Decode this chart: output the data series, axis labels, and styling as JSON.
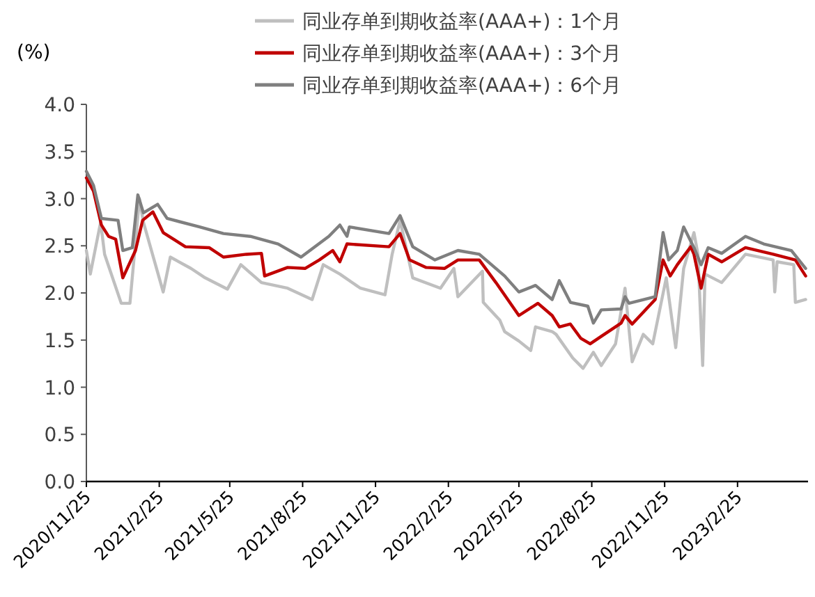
{
  "chart_data": {
    "type": "line",
    "ylabel": "(%)",
    "legend": "top",
    "grid": false,
    "marker": "none",
    "line_style": "solid",
    "xlim": [
      "2020-11-25",
      "2023-05-25"
    ],
    "xticks": [
      {
        "value": "2020-11-25",
        "label": "2020/11/25"
      },
      {
        "value": "2021-02-25",
        "label": "2021/2/25"
      },
      {
        "value": "2021-05-25",
        "label": "2021/5/25"
      },
      {
        "value": "2021-08-25",
        "label": "2021/8/25"
      },
      {
        "value": "2021-11-25",
        "label": "2021/11/25"
      },
      {
        "value": "2022-02-25",
        "label": "2022/2/25"
      },
      {
        "value": "2022-05-25",
        "label": "2022/5/25"
      },
      {
        "value": "2022-08-25",
        "label": "2022/8/25"
      },
      {
        "value": "2022-11-25",
        "label": "2022/11/25"
      },
      {
        "value": "2023-02-25",
        "label": "2023/2/25"
      }
    ],
    "ylim": [
      0,
      4
    ],
    "yticks": [
      {
        "value": 0,
        "label": "0.0"
      },
      {
        "value": 0.5,
        "label": "0.5"
      },
      {
        "value": 1,
        "label": "1.0"
      },
      {
        "value": 1.5,
        "label": "1.5"
      },
      {
        "value": 2,
        "label": "2.0"
      },
      {
        "value": 2.5,
        "label": "2.5"
      },
      {
        "value": 3,
        "label": "3.0"
      },
      {
        "value": 3.5,
        "label": "3.5"
      },
      {
        "value": 4,
        "label": "4.0"
      }
    ],
    "series": [
      {
        "name": "同业存单到期收益率(AAA+)：1个月",
        "color": "#bfbfbf",
        "x": [
          "2020-11-25",
          "2020-11-30",
          "2020-12-13",
          "2020-12-18",
          "2021-01-08",
          "2021-01-19",
          "2021-01-31",
          "2021-02-05",
          "2021-03-02",
          "2021-03-11",
          "2021-04-06",
          "2021-04-24",
          "2021-05-22",
          "2021-06-08",
          "2021-07-04",
          "2021-08-06",
          "2021-09-06",
          "2021-09-20",
          "2021-10-11",
          "2021-11-06",
          "2021-12-07",
          "2021-12-16",
          "2021-12-26",
          "2022-01-11",
          "2022-02-15",
          "2022-03-04",
          "2022-03-09",
          "2022-04-09",
          "2022-04-10",
          "2022-05-01",
          "2022-05-07",
          "2022-05-25",
          "2022-06-09",
          "2022-06-15",
          "2022-07-06",
          "2022-07-11",
          "2022-08-01",
          "2022-08-14",
          "2022-08-27",
          "2022-09-06",
          "2022-09-24",
          "2022-10-06",
          "2022-10-15",
          "2022-10-29",
          "2022-11-10",
          "2022-11-27",
          "2022-12-09",
          "2022-12-19",
          "2023-01-01",
          "2023-01-06",
          "2023-01-12",
          "2023-01-15",
          "2023-02-05",
          "2023-03-07",
          "2023-04-11",
          "2023-04-13",
          "2023-04-16",
          "2023-05-07",
          "2023-05-09",
          "2023-05-22"
        ],
        "values": [
          2.45,
          2.2,
          2.75,
          2.41,
          1.89,
          1.89,
          3.0,
          2.75,
          2.01,
          2.38,
          2.26,
          2.16,
          2.04,
          2.3,
          2.11,
          2.05,
          1.93,
          2.3,
          2.2,
          2.05,
          1.98,
          2.41,
          2.77,
          2.16,
          2.05,
          2.26,
          1.96,
          2.23,
          1.9,
          1.71,
          1.59,
          1.49,
          1.39,
          1.64,
          1.59,
          1.56,
          1.31,
          1.2,
          1.37,
          1.23,
          1.46,
          2.05,
          1.27,
          1.56,
          1.46,
          2.16,
          1.42,
          2.26,
          2.64,
          2.41,
          1.23,
          2.2,
          2.11,
          2.41,
          2.35,
          2.01,
          2.33,
          2.3,
          1.9,
          1.93
        ]
      },
      {
        "name": "同业存单到期收益率(AAA+)：3个月",
        "color": "#c00000",
        "x": [
          "2020-11-25",
          "2020-12-04",
          "2020-12-14",
          "2020-12-23",
          "2021-01-01",
          "2021-01-10",
          "2021-01-26",
          "2021-02-04",
          "2021-02-17",
          "2021-03-02",
          "2021-03-30",
          "2021-04-29",
          "2021-05-17",
          "2021-06-15",
          "2021-07-04",
          "2021-07-08",
          "2021-08-06",
          "2021-08-28",
          "2021-09-15",
          "2021-10-02",
          "2021-10-11",
          "2021-10-20",
          "2021-12-12",
          "2021-12-26",
          "2022-01-07",
          "2022-01-28",
          "2022-02-20",
          "2022-03-09",
          "2022-04-05",
          "2022-04-26",
          "2022-05-25",
          "2022-06-18",
          "2022-07-06",
          "2022-07-15",
          "2022-07-29",
          "2022-08-11",
          "2022-08-23",
          "2022-09-06",
          "2022-10-01",
          "2022-10-06",
          "2022-10-15",
          "2022-11-13",
          "2022-11-23",
          "2022-12-02",
          "2022-12-11",
          "2022-12-28",
          "2023-01-01",
          "2023-01-10",
          "2023-01-19",
          "2023-02-05",
          "2023-03-07",
          "2023-04-11",
          "2023-05-09",
          "2023-05-22"
        ],
        "values": [
          3.22,
          3.08,
          2.72,
          2.6,
          2.57,
          2.16,
          2.45,
          2.77,
          2.86,
          2.64,
          2.49,
          2.48,
          2.38,
          2.41,
          2.42,
          2.18,
          2.27,
          2.26,
          2.35,
          2.45,
          2.33,
          2.52,
          2.49,
          2.63,
          2.35,
          2.27,
          2.26,
          2.35,
          2.35,
          2.11,
          1.76,
          1.89,
          1.76,
          1.64,
          1.67,
          1.52,
          1.46,
          1.54,
          1.68,
          1.76,
          1.67,
          1.93,
          2.35,
          2.18,
          2.3,
          2.49,
          2.41,
          2.05,
          2.41,
          2.33,
          2.48,
          2.41,
          2.35,
          2.18
        ]
      },
      {
        "name": "同业存单到期收益率(AAA+)：6个月",
        "color": "#7f7f7f",
        "x": [
          "2020-11-25",
          "2020-12-04",
          "2020-12-14",
          "2021-01-04",
          "2021-01-10",
          "2021-01-22",
          "2021-01-29",
          "2021-02-05",
          "2021-02-23",
          "2021-03-07",
          "2021-04-17",
          "2021-05-17",
          "2021-06-20",
          "2021-07-25",
          "2021-08-23",
          "2021-09-27",
          "2021-10-11",
          "2021-10-20",
          "2021-10-23",
          "2021-12-12",
          "2021-12-26",
          "2022-01-11",
          "2022-02-08",
          "2022-03-09",
          "2022-04-05",
          "2022-05-07",
          "2022-05-25",
          "2022-06-15",
          "2022-07-06",
          "2022-07-15",
          "2022-07-29",
          "2022-08-20",
          "2022-08-27",
          "2022-09-06",
          "2022-10-01",
          "2022-10-06",
          "2022-10-11",
          "2022-11-13",
          "2022-11-23",
          "2022-11-30",
          "2022-12-11",
          "2022-12-19",
          "2023-01-01",
          "2023-01-10",
          "2023-01-19",
          "2023-02-05",
          "2023-03-07",
          "2023-03-30",
          "2023-05-04",
          "2023-05-22"
        ],
        "values": [
          3.29,
          3.14,
          2.79,
          2.77,
          2.45,
          2.48,
          3.04,
          2.85,
          2.94,
          2.79,
          2.7,
          2.63,
          2.6,
          2.52,
          2.38,
          2.6,
          2.72,
          2.6,
          2.7,
          2.63,
          2.82,
          2.49,
          2.35,
          2.45,
          2.41,
          2.18,
          2.01,
          2.08,
          1.93,
          2.13,
          1.9,
          1.86,
          1.68,
          1.82,
          1.83,
          1.96,
          1.89,
          1.96,
          2.64,
          2.35,
          2.45,
          2.7,
          2.48,
          2.3,
          2.48,
          2.42,
          2.6,
          2.52,
          2.45,
          2.26
        ]
      }
    ]
  }
}
